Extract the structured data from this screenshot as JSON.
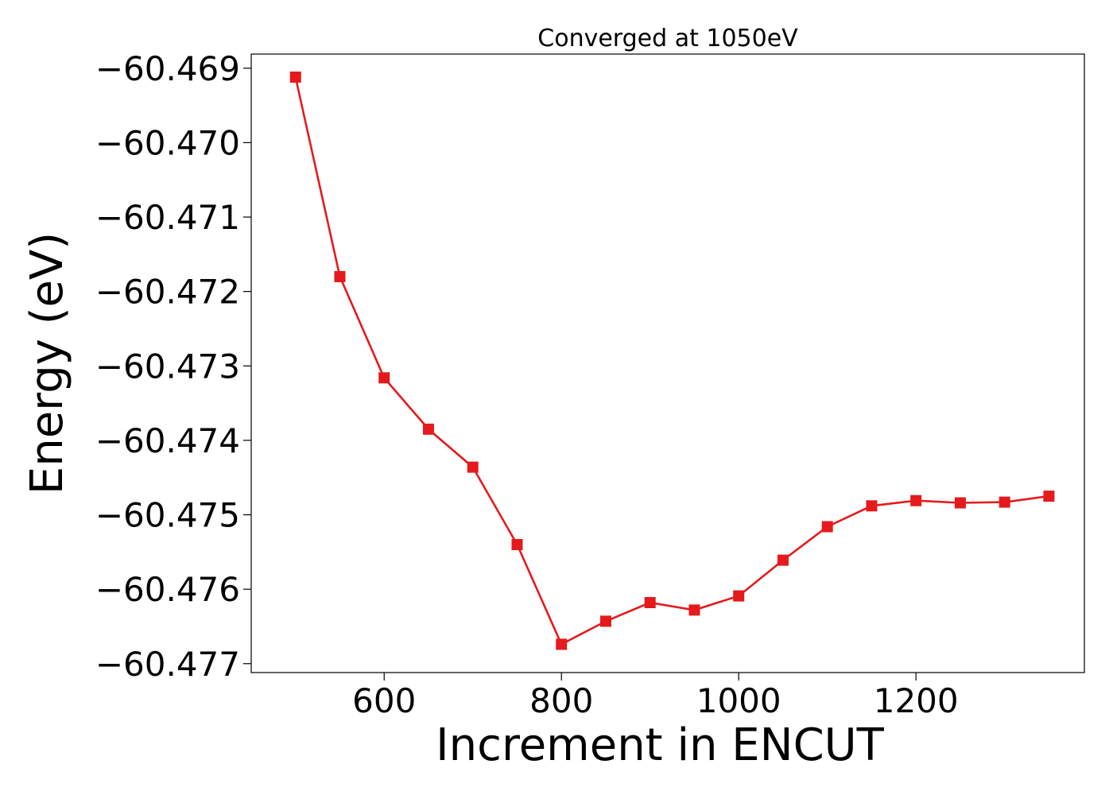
{
  "chart_data": {
    "type": "line",
    "title": "Converged at 1050eV",
    "xlabel": "Increment in ENCUT",
    "ylabel": "Energy (eV)",
    "x": [
      500,
      550,
      600,
      650,
      700,
      750,
      800,
      850,
      900,
      950,
      1000,
      1050,
      1100,
      1150,
      1200,
      1250,
      1300,
      1350
    ],
    "series": [
      {
        "values": [
          -60.46912,
          -60.4718,
          -60.47316,
          -60.47385,
          -60.47436,
          -60.4754,
          -60.47674,
          -60.47643,
          -60.47618,
          -60.47628,
          -60.47609,
          -60.47561,
          -60.47516,
          -60.47488,
          -60.47481,
          -60.47484,
          -60.47483,
          -60.47475
        ],
        "color": "#e41a1c",
        "marker": "square"
      }
    ],
    "xlim": [
      450,
      1390
    ],
    "ylim": [
      -60.47712,
      -60.46881
    ],
    "x_ticks": [
      600,
      800,
      1000,
      1200
    ],
    "x_tick_labels": [
      "600",
      "800",
      "1000",
      "1200"
    ],
    "y_ticks": [
      -60.469,
      -60.47,
      -60.471,
      -60.472,
      -60.473,
      -60.474,
      -60.475,
      -60.476,
      -60.477
    ],
    "y_tick_labels": [
      "−60.469",
      "−60.470",
      "−60.471",
      "−60.472",
      "−60.473",
      "−60.474",
      "−60.475",
      "−60.476",
      "−60.477"
    ],
    "grid": false,
    "legend": "none"
  }
}
